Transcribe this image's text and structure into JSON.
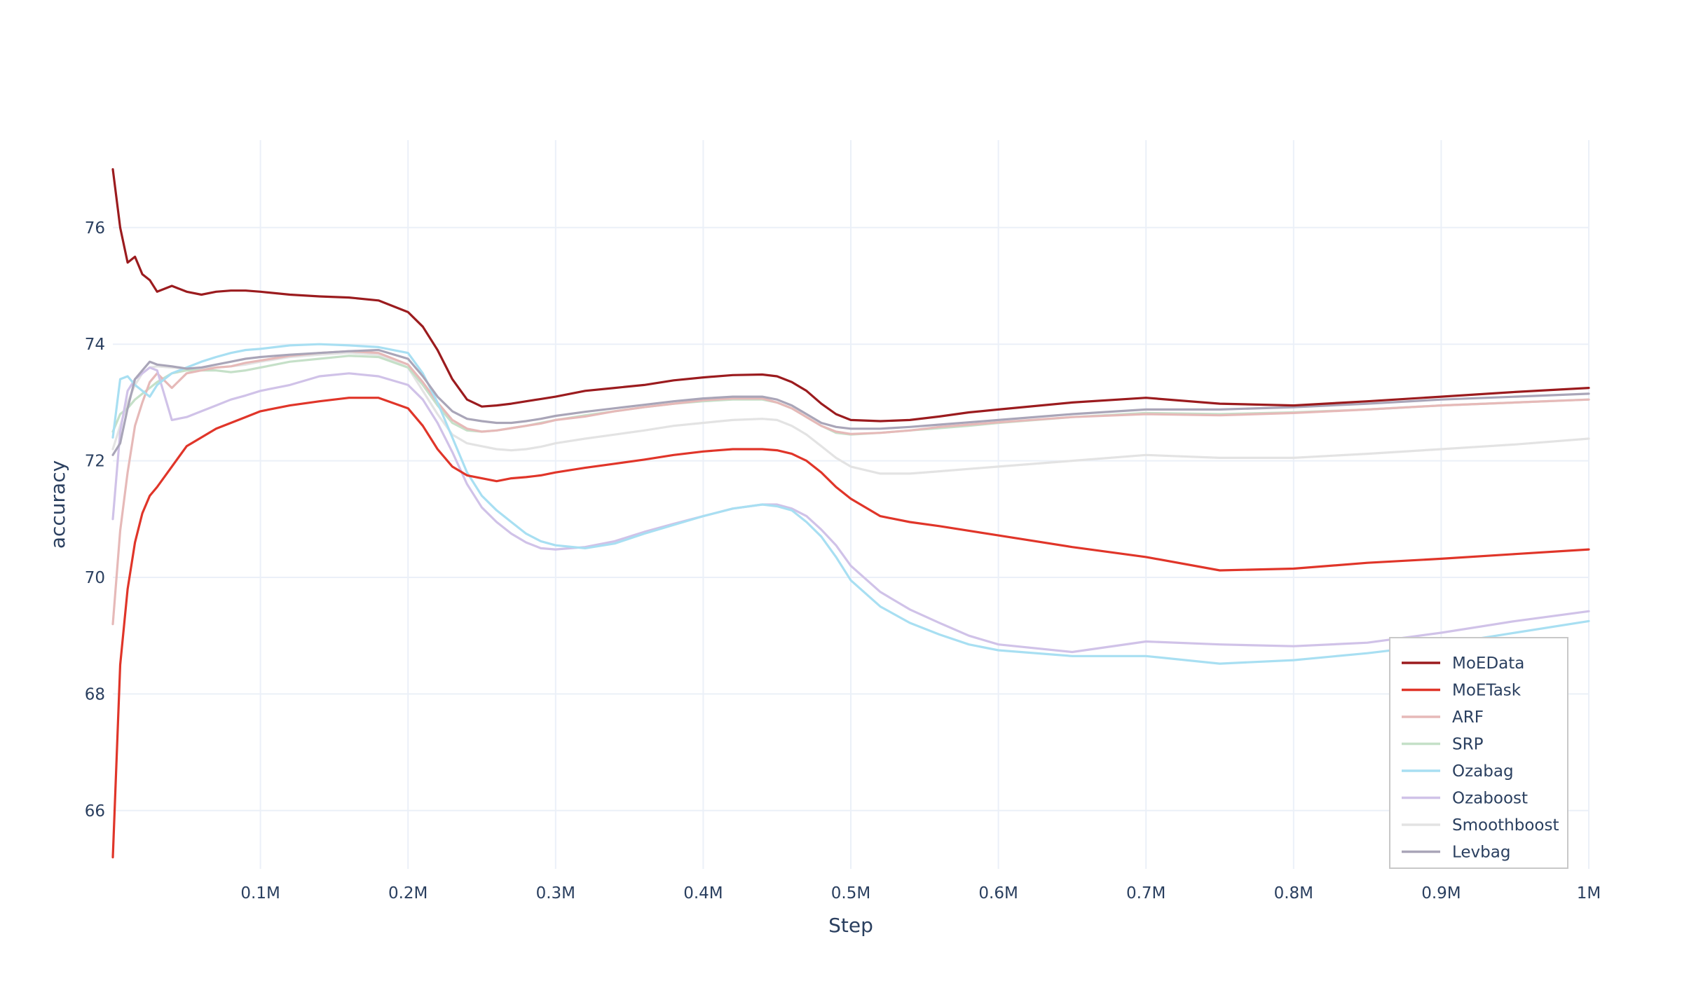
{
  "chart_data": {
    "type": "line",
    "title": "",
    "xlabel": "Step",
    "ylabel": "accuracy",
    "xlim": [
      0,
      1000000
    ],
    "ylim": [
      65,
      77.5
    ],
    "grid": true,
    "legend_position": "bottom-right",
    "x_ticks": [
      {
        "value": 100000,
        "label": "0.1M"
      },
      {
        "value": 200000,
        "label": "0.2M"
      },
      {
        "value": 300000,
        "label": "0.3M"
      },
      {
        "value": 400000,
        "label": "0.4M"
      },
      {
        "value": 500000,
        "label": "0.5M"
      },
      {
        "value": 600000,
        "label": "0.6M"
      },
      {
        "value": 700000,
        "label": "0.7M"
      },
      {
        "value": 800000,
        "label": "0.8M"
      },
      {
        "value": 900000,
        "label": "0.9M"
      },
      {
        "value": 1000000,
        "label": "1M"
      }
    ],
    "y_ticks": [
      {
        "value": 66,
        "label": "66"
      },
      {
        "value": 68,
        "label": "68"
      },
      {
        "value": 70,
        "label": "70"
      },
      {
        "value": 72,
        "label": "72"
      },
      {
        "value": 74,
        "label": "74"
      },
      {
        "value": 76,
        "label": "76"
      }
    ],
    "x": [
      0,
      5000,
      10000,
      15000,
      20000,
      25000,
      30000,
      40000,
      50000,
      60000,
      70000,
      80000,
      90000,
      100000,
      120000,
      140000,
      160000,
      180000,
      200000,
      210000,
      220000,
      230000,
      240000,
      250000,
      260000,
      270000,
      280000,
      290000,
      300000,
      320000,
      340000,
      360000,
      380000,
      400000,
      420000,
      440000,
      450000,
      460000,
      470000,
      480000,
      490000,
      500000,
      520000,
      540000,
      560000,
      580000,
      600000,
      650000,
      700000,
      750000,
      800000,
      850000,
      900000,
      950000,
      1000000
    ],
    "series": [
      {
        "name": "MoEData",
        "color": "#9b1b1e",
        "values": [
          77.0,
          76.0,
          75.4,
          75.5,
          75.2,
          75.1,
          74.9,
          75.0,
          74.9,
          74.85,
          74.9,
          74.92,
          74.92,
          74.9,
          74.85,
          74.82,
          74.8,
          74.75,
          74.55,
          74.3,
          73.9,
          73.4,
          73.05,
          72.93,
          72.95,
          72.98,
          73.02,
          73.06,
          73.1,
          73.2,
          73.25,
          73.3,
          73.38,
          73.43,
          73.47,
          73.48,
          73.45,
          73.35,
          73.2,
          72.98,
          72.8,
          72.7,
          72.68,
          72.7,
          72.76,
          72.83,
          72.88,
          73.0,
          73.08,
          72.98,
          72.95,
          73.02,
          73.1,
          73.18,
          73.25
        ]
      },
      {
        "name": "MoETask",
        "color": "#e03529",
        "values": [
          65.2,
          68.5,
          69.8,
          70.6,
          71.1,
          71.4,
          71.55,
          71.9,
          72.25,
          72.4,
          72.55,
          72.65,
          72.75,
          72.85,
          72.95,
          73.02,
          73.08,
          73.08,
          72.9,
          72.6,
          72.2,
          71.9,
          71.75,
          71.7,
          71.65,
          71.7,
          71.72,
          71.75,
          71.8,
          71.88,
          71.95,
          72.02,
          72.1,
          72.16,
          72.2,
          72.2,
          72.18,
          72.12,
          72.0,
          71.8,
          71.55,
          71.35,
          71.05,
          70.95,
          70.88,
          70.8,
          70.72,
          70.52,
          70.35,
          70.12,
          70.15,
          70.25,
          70.32,
          70.4,
          70.48
        ]
      },
      {
        "name": "ARF",
        "color": "#e6b9b8",
        "values": [
          69.2,
          70.8,
          71.8,
          72.6,
          73.0,
          73.35,
          73.5,
          73.25,
          73.5,
          73.55,
          73.6,
          73.62,
          73.68,
          73.72,
          73.8,
          73.85,
          73.88,
          73.85,
          73.65,
          73.35,
          73.0,
          72.7,
          72.55,
          72.5,
          72.52,
          72.56,
          72.6,
          72.64,
          72.7,
          72.76,
          72.85,
          72.92,
          72.98,
          73.04,
          73.07,
          73.07,
          73.0,
          72.9,
          72.75,
          72.6,
          72.5,
          72.46,
          72.48,
          72.52,
          72.58,
          72.62,
          72.66,
          72.75,
          72.8,
          72.78,
          72.82,
          72.88,
          72.95,
          73.0,
          73.05
        ]
      },
      {
        "name": "SRP",
        "color": "#c5e0c8",
        "values": [
          72.5,
          72.8,
          72.9,
          73.05,
          73.15,
          73.25,
          73.35,
          73.5,
          73.55,
          73.55,
          73.55,
          73.52,
          73.55,
          73.6,
          73.7,
          73.75,
          73.8,
          73.78,
          73.6,
          73.3,
          72.95,
          72.65,
          72.52,
          72.5,
          72.52,
          72.56,
          72.6,
          72.65,
          72.7,
          72.78,
          72.85,
          72.92,
          72.98,
          73.02,
          73.05,
          73.05,
          73.0,
          72.9,
          72.75,
          72.6,
          72.48,
          72.45,
          72.48,
          72.52,
          72.56,
          72.6,
          72.65,
          72.75,
          72.82,
          72.8,
          72.83,
          72.88,
          72.95,
          73.0,
          73.05
        ]
      },
      {
        "name": "Ozabag",
        "color": "#a8dff2",
        "values": [
          72.4,
          73.4,
          73.45,
          73.3,
          73.2,
          73.1,
          73.3,
          73.5,
          73.6,
          73.7,
          73.78,
          73.85,
          73.9,
          73.92,
          73.98,
          74.0,
          73.98,
          73.95,
          73.85,
          73.5,
          73.0,
          72.4,
          71.8,
          71.4,
          71.15,
          70.95,
          70.75,
          70.62,
          70.55,
          70.5,
          70.58,
          70.75,
          70.9,
          71.05,
          71.18,
          71.25,
          71.22,
          71.15,
          70.95,
          70.7,
          70.35,
          69.95,
          69.5,
          69.22,
          69.02,
          68.85,
          68.75,
          68.65,
          68.65,
          68.52,
          68.58,
          68.7,
          68.85,
          69.05,
          69.25
        ]
      },
      {
        "name": "Ozaboost",
        "color": "#d0c2e8",
        "values": [
          71.0,
          72.5,
          73.2,
          73.4,
          73.5,
          73.6,
          73.55,
          72.7,
          72.75,
          72.85,
          72.95,
          73.05,
          73.12,
          73.2,
          73.3,
          73.45,
          73.5,
          73.45,
          73.3,
          73.05,
          72.65,
          72.15,
          71.6,
          71.2,
          70.95,
          70.75,
          70.6,
          70.5,
          70.48,
          70.52,
          70.62,
          70.78,
          70.92,
          71.05,
          71.18,
          71.25,
          71.25,
          71.18,
          71.05,
          70.82,
          70.55,
          70.2,
          69.75,
          69.45,
          69.22,
          69.0,
          68.85,
          68.72,
          68.9,
          68.85,
          68.82,
          68.88,
          69.05,
          69.25,
          69.42
        ]
      },
      {
        "name": "Smoothboost",
        "color": "#e3e3e3",
        "values": [
          72.2,
          72.6,
          73.0,
          73.3,
          73.5,
          73.6,
          73.62,
          73.6,
          73.58,
          73.58,
          73.6,
          73.62,
          73.65,
          73.7,
          73.78,
          73.82,
          73.85,
          73.82,
          73.6,
          73.2,
          72.8,
          72.45,
          72.3,
          72.25,
          72.2,
          72.18,
          72.2,
          72.24,
          72.3,
          72.38,
          72.45,
          72.52,
          72.6,
          72.65,
          72.7,
          72.72,
          72.7,
          72.6,
          72.45,
          72.25,
          72.05,
          71.9,
          71.78,
          71.78,
          71.82,
          71.86,
          71.9,
          72.0,
          72.1,
          72.05,
          72.05,
          72.12,
          72.2,
          72.28,
          72.38
        ]
      },
      {
        "name": "Levbag",
        "color": "#a9a5b8",
        "values": [
          72.1,
          72.3,
          72.9,
          73.4,
          73.55,
          73.7,
          73.65,
          73.62,
          73.58,
          73.6,
          73.65,
          73.7,
          73.75,
          73.78,
          73.82,
          73.85,
          73.88,
          73.9,
          73.75,
          73.45,
          73.1,
          72.85,
          72.72,
          72.68,
          72.65,
          72.65,
          72.68,
          72.72,
          72.77,
          72.84,
          72.9,
          72.96,
          73.02,
          73.07,
          73.1,
          73.1,
          73.05,
          72.95,
          72.8,
          72.65,
          72.58,
          72.55,
          72.55,
          72.58,
          72.62,
          72.66,
          72.7,
          72.8,
          72.88,
          72.88,
          72.92,
          72.98,
          73.05,
          73.1,
          73.15
        ]
      }
    ]
  }
}
